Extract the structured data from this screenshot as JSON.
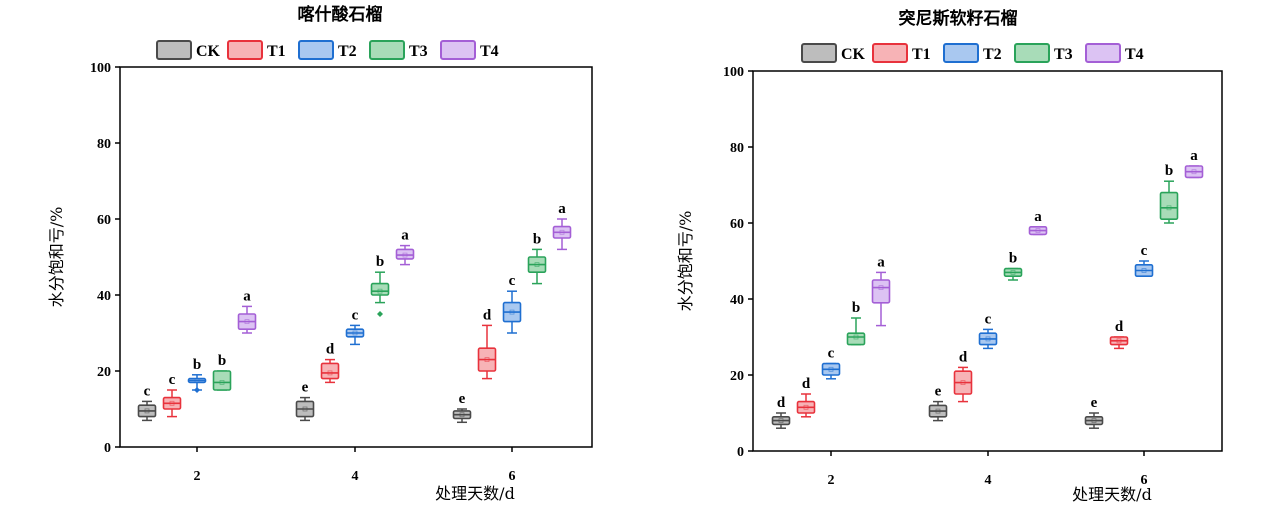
{
  "colors": {
    "CK": {
      "stroke": "#4a4a4a",
      "fill": "#bdbdbd"
    },
    "T1": {
      "stroke": "#e8323c",
      "fill": "#f7b3b6"
    },
    "T2": {
      "stroke": "#1f6fd1",
      "fill": "#a9c8f0"
    },
    "T3": {
      "stroke": "#2aa35a",
      "fill": "#a8dcb8"
    },
    "T4": {
      "stroke": "#a45fd6",
      "fill": "#dcc3f3"
    }
  },
  "chart_data": [
    {
      "type": "box",
      "title": "喀什酸石榴",
      "xlabel": "处理天数/d",
      "ylabel": "水分饱和亏/%",
      "ylim": [
        0,
        100
      ],
      "yticks": [
        0,
        20,
        40,
        60,
        80,
        100
      ],
      "categories": [
        "2",
        "4",
        "6"
      ],
      "legend": [
        "CK",
        "T1",
        "T2",
        "T3",
        "T4"
      ],
      "legend_position": "top",
      "grid": false,
      "series": [
        {
          "name": "CK",
          "boxes": [
            {
              "min": 7,
              "q1": 8,
              "median": 9.5,
              "q3": 11,
              "max": 12,
              "label": "c"
            },
            {
              "min": 7,
              "q1": 8,
              "median": 10,
              "q3": 12,
              "max": 13,
              "label": "e"
            },
            {
              "min": 6.5,
              "q1": 7.5,
              "median": 8.5,
              "q3": 9.5,
              "max": 10,
              "label": "e"
            }
          ]
        },
        {
          "name": "T1",
          "boxes": [
            {
              "min": 8,
              "q1": 10,
              "median": 11.5,
              "q3": 13,
              "max": 15,
              "label": "c"
            },
            {
              "min": 17,
              "q1": 18,
              "median": 19.5,
              "q3": 22,
              "max": 23,
              "label": "d"
            },
            {
              "min": 18,
              "q1": 20,
              "median": 23,
              "q3": 26,
              "max": 32,
              "label": "d"
            }
          ]
        },
        {
          "name": "T2",
          "boxes": [
            {
              "min": 15,
              "q1": 17,
              "median": 17.5,
              "q3": 18,
              "max": 19,
              "label": "b",
              "outliers": [
                15
              ]
            },
            {
              "min": 27,
              "q1": 29,
              "median": 30,
              "q3": 31,
              "max": 32,
              "label": "c"
            },
            {
              "min": 30,
              "q1": 33,
              "median": 35.5,
              "q3": 38,
              "max": 41,
              "label": "c"
            }
          ]
        },
        {
          "name": "T3",
          "boxes": [
            {
              "min": 15,
              "q1": 15,
              "median": 17,
              "q3": 20,
              "max": 20,
              "label": "b"
            },
            {
              "min": 38,
              "q1": 40,
              "median": 41,
              "q3": 43,
              "max": 46,
              "label": "b",
              "outliers": [
                35
              ]
            },
            {
              "min": 43,
              "q1": 46,
              "median": 48,
              "q3": 50,
              "max": 52,
              "label": "b"
            }
          ]
        },
        {
          "name": "T4",
          "boxes": [
            {
              "min": 30,
              "q1": 31,
              "median": 33,
              "q3": 35,
              "max": 37,
              "label": "a"
            },
            {
              "min": 48,
              "q1": 49.5,
              "median": 50.5,
              "q3": 52,
              "max": 53,
              "label": "a"
            },
            {
              "min": 52,
              "q1": 55,
              "median": 56.5,
              "q3": 58,
              "max": 60,
              "label": "a"
            }
          ]
        }
      ]
    },
    {
      "type": "box",
      "title": "突尼斯软籽石榴",
      "xlabel": "处理天数/d",
      "ylabel": "水分饱和亏/%",
      "ylim": [
        0,
        100
      ],
      "yticks": [
        0,
        20,
        40,
        60,
        80,
        100
      ],
      "categories": [
        "2",
        "4",
        "6"
      ],
      "legend": [
        "CK",
        "T1",
        "T2",
        "T3",
        "T4"
      ],
      "legend_position": "top",
      "grid": false,
      "series": [
        {
          "name": "CK",
          "boxes": [
            {
              "min": 6,
              "q1": 7,
              "median": 8,
              "q3": 9,
              "max": 10,
              "label": "d"
            },
            {
              "min": 8,
              "q1": 9,
              "median": 10.5,
              "q3": 12,
              "max": 13,
              "label": "e"
            },
            {
              "min": 6,
              "q1": 7,
              "median": 8,
              "q3": 9,
              "max": 10,
              "label": "e"
            }
          ]
        },
        {
          "name": "T1",
          "boxes": [
            {
              "min": 9,
              "q1": 10,
              "median": 11.5,
              "q3": 13,
              "max": 15,
              "label": "d"
            },
            {
              "min": 13,
              "q1": 15,
              "median": 18,
              "q3": 21,
              "max": 22,
              "label": "d"
            },
            {
              "min": 27,
              "q1": 28,
              "median": 29,
              "q3": 30,
              "max": 30,
              "label": "d"
            }
          ]
        },
        {
          "name": "T2",
          "boxes": [
            {
              "min": 19,
              "q1": 20,
              "median": 21.5,
              "q3": 23,
              "max": 23,
              "label": "c"
            },
            {
              "min": 27,
              "q1": 28,
              "median": 29.5,
              "q3": 31,
              "max": 32,
              "label": "c"
            },
            {
              "min": 46,
              "q1": 46,
              "median": 47.5,
              "q3": 49,
              "max": 50,
              "label": "c"
            }
          ]
        },
        {
          "name": "T3",
          "boxes": [
            {
              "min": 28,
              "q1": 28,
              "median": 30,
              "q3": 31,
              "max": 35,
              "label": "b"
            },
            {
              "min": 45,
              "q1": 46,
              "median": 47,
              "q3": 48,
              "max": 48,
              "label": "b"
            },
            {
              "min": 60,
              "q1": 61,
              "median": 64,
              "q3": 68,
              "max": 71,
              "label": "b"
            }
          ]
        },
        {
          "name": "T4",
          "boxes": [
            {
              "min": 33,
              "q1": 39,
              "median": 43,
              "q3": 45,
              "max": 47,
              "label": "a"
            },
            {
              "min": 57,
              "q1": 57,
              "median": 58,
              "q3": 59,
              "max": 59,
              "label": "a"
            },
            {
              "min": 72,
              "q1": 72,
              "median": 73.5,
              "q3": 75,
              "max": 75,
              "label": "a"
            }
          ]
        }
      ]
    }
  ]
}
